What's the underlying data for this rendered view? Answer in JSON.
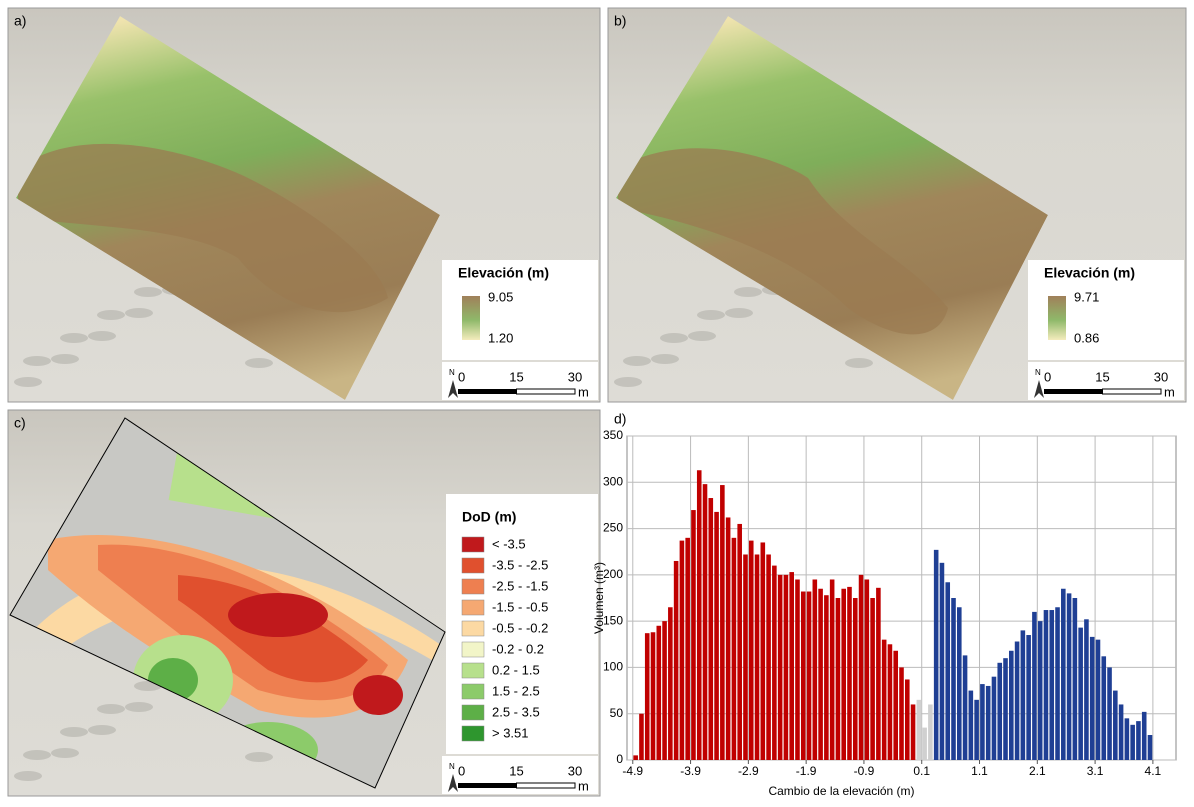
{
  "panels": [
    {
      "label": "a)",
      "legend": {
        "title": "Elevación (m)",
        "max": "9.05",
        "min": "1.20"
      },
      "scale": {
        "labels": [
          "0",
          "15",
          "30"
        ],
        "unit": "m",
        "north": "N"
      }
    },
    {
      "label": "b)",
      "legend": {
        "title": "Elevación (m)",
        "max": "9.71",
        "min": "0.86"
      },
      "scale": {
        "labels": [
          "0",
          "15",
          "30"
        ],
        "unit": "m",
        "north": "N"
      }
    },
    {
      "label": "c)",
      "legend": {
        "title": "DoD (m)",
        "items": [
          {
            "label": "< -3.5",
            "color": "#c0191c"
          },
          {
            "label": "-3.5 - -2.5",
            "color": "#e0502e"
          },
          {
            "label": "-2.5 - -1.5",
            "color": "#ee7f50"
          },
          {
            "label": "-1.5 - -0.5",
            "color": "#f5a872"
          },
          {
            "label": "-0.5 - -0.2",
            "color": "#fcd9a3"
          },
          {
            "label": "-0.2 - 0.2",
            "color": "#f2f5c8"
          },
          {
            "label": "0.2 - 1.5",
            "color": "#b7e08c"
          },
          {
            "label": "1.5 - 2.5",
            "color": "#8ccb6a"
          },
          {
            "label": "2.5 - 3.5",
            "color": "#5daf47"
          },
          {
            "label": "> 3.51",
            "color": "#2e962e"
          }
        ]
      },
      "scale": {
        "labels": [
          "0",
          "15",
          "30"
        ],
        "unit": "m",
        "north": "N"
      }
    }
  ],
  "chart_data": {
    "type": "histogram",
    "panel_label": "d)",
    "x_label": "Cambio de la elevación (m)",
    "y_label": "Volumen (m³)",
    "bins": [
      -4.9,
      -4.8,
      -4.7,
      -4.6,
      -4.5,
      -4.4,
      -4.3,
      -4.2,
      -4.1,
      -4.0,
      -3.9,
      -3.8,
      -3.7,
      -3.6,
      -3.5,
      -3.4,
      -3.3,
      -3.2,
      -3.1,
      -3.0,
      -2.9,
      -2.8,
      -2.7,
      -2.6,
      -2.5,
      -2.4,
      -2.3,
      -2.2,
      -2.1,
      -2.0,
      -1.9,
      -1.8,
      -1.7,
      -1.6,
      -1.5,
      -1.4,
      -1.3,
      -1.2,
      -1.1,
      -1.0,
      -0.9,
      -0.8,
      -0.7,
      -0.6,
      -0.5,
      -0.4,
      -0.3,
      -0.2,
      -0.1,
      0.0,
      0.1,
      0.2,
      0.3,
      0.4,
      0.5,
      0.6,
      0.7,
      0.8,
      0.9,
      1.0,
      1.1,
      1.2,
      1.3,
      1.4,
      1.5,
      1.6,
      1.7,
      1.8,
      1.9,
      2.0,
      2.1,
      2.2,
      2.3,
      2.4,
      2.5,
      2.6,
      2.7,
      2.8,
      2.9,
      3.0,
      3.1,
      3.2,
      3.3,
      3.4,
      3.5,
      3.6,
      3.7,
      3.8,
      3.9,
      4.0,
      4.1
    ],
    "values": [
      5,
      50,
      137,
      138,
      145,
      150,
      165,
      215,
      237,
      240,
      270,
      313,
      298,
      283,
      268,
      297,
      262,
      240,
      255,
      222,
      237,
      222,
      235,
      222,
      210,
      200,
      200,
      203,
      195,
      182,
      182,
      195,
      185,
      178,
      195,
      175,
      185,
      187,
      175,
      200,
      195,
      175,
      186,
      130,
      125,
      118,
      100,
      87,
      60,
      65,
      35,
      60,
      227,
      213,
      192,
      175,
      165,
      113,
      75,
      65,
      82,
      80,
      90,
      105,
      110,
      118,
      128,
      140,
      135,
      160,
      150,
      162,
      162,
      165,
      185,
      180,
      175,
      143,
      152,
      133,
      130,
      112,
      100,
      75,
      60,
      45,
      38,
      42,
      52,
      27
    ],
    "colors": [
      "#c00000",
      "#c00000",
      "#c00000",
      "#c00000",
      "#c00000",
      "#c00000",
      "#c00000",
      "#c00000",
      "#c00000",
      "#c00000",
      "#c00000",
      "#c00000",
      "#c00000",
      "#c00000",
      "#c00000",
      "#c00000",
      "#c00000",
      "#c00000",
      "#c00000",
      "#c00000",
      "#c00000",
      "#c00000",
      "#c00000",
      "#c00000",
      "#c00000",
      "#c00000",
      "#c00000",
      "#c00000",
      "#c00000",
      "#c00000",
      "#c00000",
      "#c00000",
      "#c00000",
      "#c00000",
      "#c00000",
      "#c00000",
      "#c00000",
      "#c00000",
      "#c00000",
      "#c00000",
      "#c00000",
      "#c00000",
      "#c00000",
      "#c00000",
      "#c00000",
      "#c00000",
      "#c00000",
      "#c00000",
      "#c00000",
      "#d0d0d0",
      "#d0d0d0",
      "#d0d0d0",
      "#1f3f94",
      "#1f3f94",
      "#1f3f94",
      "#1f3f94",
      "#1f3f94",
      "#1f3f94",
      "#1f3f94",
      "#1f3f94",
      "#1f3f94",
      "#1f3f94",
      "#1f3f94",
      "#1f3f94",
      "#1f3f94",
      "#1f3f94",
      "#1f3f94",
      "#1f3f94",
      "#1f3f94",
      "#1f3f94",
      "#1f3f94",
      "#1f3f94",
      "#1f3f94",
      "#1f3f94",
      "#1f3f94",
      "#1f3f94",
      "#1f3f94",
      "#1f3f94",
      "#1f3f94",
      "#1f3f94",
      "#1f3f94",
      "#1f3f94",
      "#1f3f94",
      "#1f3f94",
      "#1f3f94",
      "#1f3f94",
      "#1f3f94",
      "#1f3f94",
      "#1f3f94",
      "#1f3f94"
    ],
    "xlim": [
      -5.0,
      4.5
    ],
    "ylim": [
      0,
      350
    ],
    "xticks": [
      -4.9,
      -3.9,
      -2.9,
      -1.9,
      -0.9,
      0.1,
      1.1,
      2.1,
      3.1,
      4.1
    ],
    "yticks": [
      0,
      50,
      100,
      150,
      200,
      250,
      300,
      350
    ],
    "grid": true
  }
}
